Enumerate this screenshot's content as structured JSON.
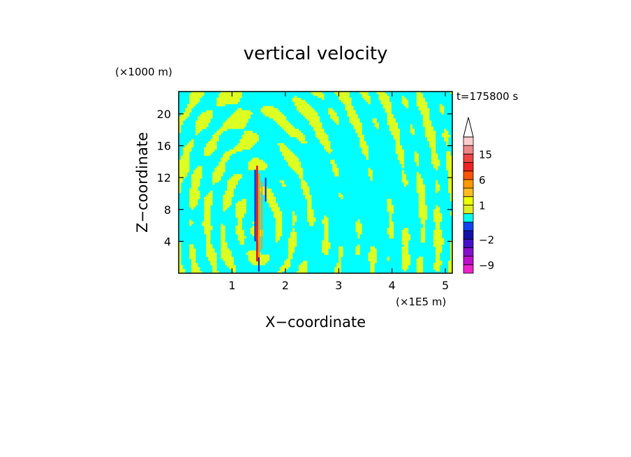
{
  "chart_data": {
    "type": "heatmap",
    "title": "vertical velocity",
    "xlabel": "X−coordinate",
    "ylabel": "Z−coordinate",
    "x_unit": "(×1E5 m)",
    "y_unit": "(×1000 m)",
    "time_label": "t=175800 s",
    "xlim": [
      0,
      5.13
    ],
    "ylim": [
      0,
      22.8
    ],
    "x_ticks": [
      1,
      2,
      3,
      4,
      5
    ],
    "y_ticks": [
      4,
      8,
      12,
      16,
      20
    ],
    "x_tick_labels": [
      "1",
      "2",
      "3",
      "4",
      "5"
    ],
    "y_tick_labels": [
      "4",
      "8",
      "12",
      "16",
      "20"
    ],
    "background_level": "cyan",
    "colorbar": {
      "tick_labels": [
        "15",
        "6",
        "1",
        "−2",
        "−9"
      ],
      "tick_values": [
        15,
        6,
        1,
        -2,
        -9
      ],
      "levels": [
        -12,
        -9,
        -6,
        -3,
        -2,
        -1,
        0,
        0.5,
        1,
        2,
        4,
        6,
        9,
        12,
        15,
        18,
        21
      ],
      "colors": [
        "#ee22cc",
        "#bb11cc",
        "#8811cc",
        "#4411cc",
        "#1111aa",
        "#1144ee",
        "#00ffee",
        "#ddee22",
        "#eeff00",
        "#ffbb22",
        "#ff9900",
        "#ff5500",
        "#ee2222",
        "#ee4444",
        "#ee8888",
        "#ffcccc"
      ],
      "extend": "max"
    },
    "colors": {
      "cyan": "#00ffff",
      "yellow": "#ddff22",
      "orange": "#ff9900",
      "red": "#ee1111",
      "blue": "#1111cc"
    }
  }
}
